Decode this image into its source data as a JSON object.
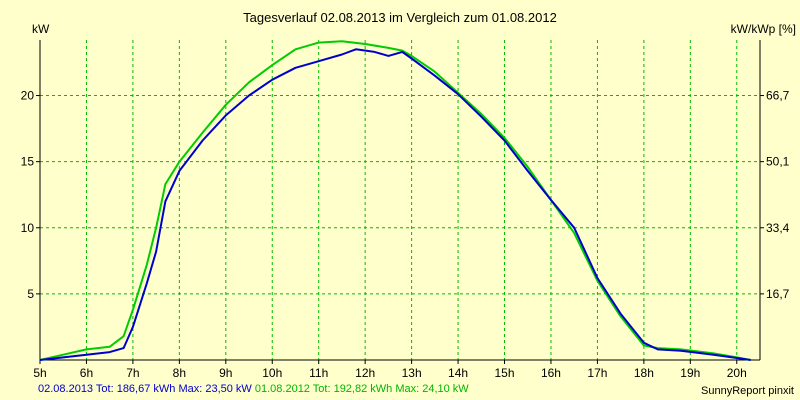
{
  "chart_data": {
    "type": "line",
    "title": "Tagesverlauf 02.08.2013 im Vergleich zum 01.08.2012",
    "ylabel_left": "kW",
    "ylabel_right": "kW/kWp [%]",
    "xlim": [
      5,
      20.5
    ],
    "ylim": [
      0,
      24.2
    ],
    "x_tick_labels": [
      "5h",
      "6h",
      "7h",
      "8h",
      "9h",
      "10h",
      "11h",
      "12h",
      "13h",
      "14h",
      "15h",
      "16h",
      "17h",
      "18h",
      "19h",
      "20h"
    ],
    "y_ticks_left": [
      5,
      10,
      15,
      20
    ],
    "y_ticks_right": [
      {
        "value": 5,
        "label": "16,7"
      },
      {
        "value": 10,
        "label": "33,4"
      },
      {
        "value": 15,
        "label": "50,1"
      },
      {
        "value": 20,
        "label": "66,7"
      }
    ],
    "grid": true,
    "series": [
      {
        "name": "02.08.2013",
        "color": "#0000cc",
        "x": [
          5.0,
          5.5,
          6.0,
          6.5,
          6.8,
          7.0,
          7.3,
          7.5,
          7.7,
          8.0,
          8.5,
          9.0,
          9.5,
          10.0,
          10.5,
          11.0,
          11.5,
          11.8,
          12.2,
          12.5,
          12.8,
          13.0,
          13.5,
          14.0,
          14.5,
          15.0,
          15.5,
          16.0,
          16.5,
          17.0,
          17.5,
          18.0,
          18.3,
          18.8,
          19.5,
          20.0,
          20.3
        ],
        "values": [
          0.0,
          0.2,
          0.4,
          0.6,
          0.9,
          2.5,
          5.8,
          8.2,
          12.0,
          14.3,
          16.6,
          18.5,
          20.0,
          21.2,
          22.1,
          22.6,
          23.1,
          23.5,
          23.3,
          23.0,
          23.3,
          22.8,
          21.5,
          20.1,
          18.4,
          16.6,
          14.3,
          12.1,
          10.0,
          6.2,
          3.5,
          1.3,
          0.8,
          0.7,
          0.4,
          0.15,
          0.0
        ]
      },
      {
        "name": "01.08.2012",
        "color": "#00cc00",
        "x": [
          5.0,
          5.5,
          6.0,
          6.5,
          6.8,
          7.0,
          7.3,
          7.5,
          7.7,
          8.0,
          8.5,
          9.0,
          9.5,
          10.0,
          10.5,
          11.0,
          11.5,
          12.0,
          12.5,
          12.8,
          13.0,
          13.5,
          14.0,
          14.5,
          15.0,
          15.5,
          16.0,
          16.5,
          17.0,
          17.5,
          18.0,
          18.3,
          18.8,
          19.5,
          20.0,
          20.3
        ],
        "values": [
          0.0,
          0.4,
          0.8,
          1.0,
          1.8,
          3.8,
          7.2,
          10.0,
          13.3,
          15.0,
          17.2,
          19.3,
          21.0,
          22.3,
          23.5,
          24.0,
          24.1,
          23.9,
          23.6,
          23.4,
          23.0,
          21.8,
          20.2,
          18.6,
          16.8,
          14.6,
          12.1,
          9.6,
          6.0,
          3.3,
          1.1,
          0.9,
          0.8,
          0.5,
          0.2,
          0.0
        ]
      }
    ]
  },
  "footer": {
    "blue_text": "02.08.2013 Tot: 186,67 kWh Max: 23,50 kW",
    "green_text": "01.08.2012 Tot: 192,82 kWh Max: 24,10 kW",
    "brand": "SunnyReport pinxit"
  }
}
